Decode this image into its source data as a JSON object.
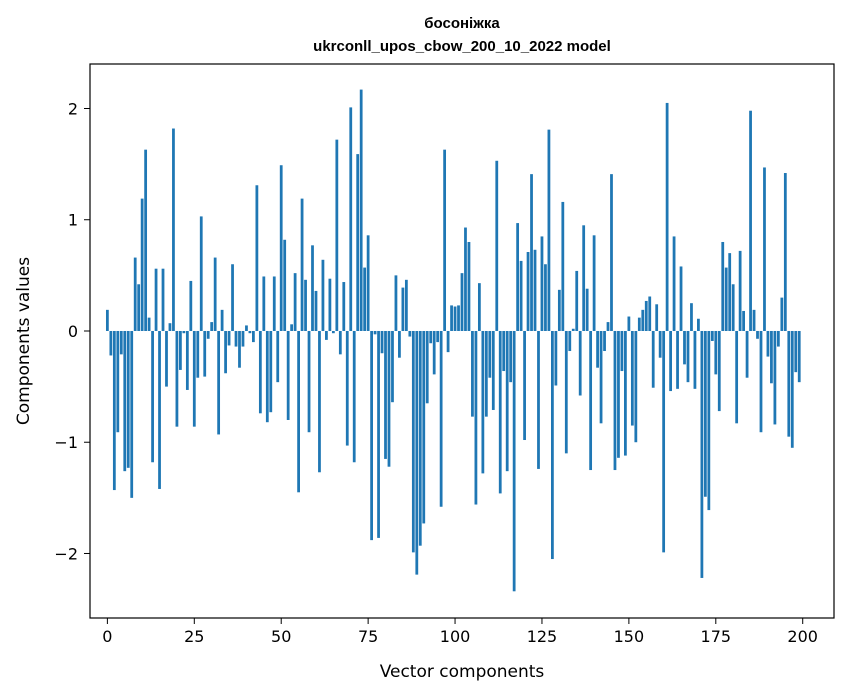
{
  "chart_data": {
    "type": "bar",
    "title": "босоніжка",
    "subtitle": "ukrconll_upos_cbow_200_10_2022 model",
    "xlabel": "Vector components",
    "ylabel": "Components values",
    "xlim": [
      -5,
      209
    ],
    "ylim": [
      -2.58,
      2.4
    ],
    "xticks": [
      0,
      25,
      50,
      75,
      100,
      125,
      150,
      175,
      200
    ],
    "yticks": [
      -2,
      -1,
      0,
      1,
      2
    ],
    "ytick_labels": [
      "−2",
      "−1",
      "0",
      "1",
      "2"
    ],
    "grid": false,
    "color": "#1f77b4",
    "x": [
      0,
      1,
      2,
      3,
      4,
      5,
      6,
      7,
      8,
      9,
      10,
      11,
      12,
      13,
      14,
      15,
      16,
      17,
      18,
      19,
      20,
      21,
      22,
      23,
      24,
      25,
      26,
      27,
      28,
      29,
      30,
      31,
      32,
      33,
      34,
      35,
      36,
      37,
      38,
      39,
      40,
      41,
      42,
      43,
      44,
      45,
      46,
      47,
      48,
      49,
      50,
      51,
      52,
      53,
      54,
      55,
      56,
      57,
      58,
      59,
      60,
      61,
      62,
      63,
      64,
      65,
      66,
      67,
      68,
      69,
      70,
      71,
      72,
      73,
      74,
      75,
      76,
      77,
      78,
      79,
      80,
      81,
      82,
      83,
      84,
      85,
      86,
      87,
      88,
      89,
      90,
      91,
      92,
      93,
      94,
      95,
      96,
      97,
      98,
      99,
      100,
      101,
      102,
      103,
      104,
      105,
      106,
      107,
      108,
      109,
      110,
      111,
      112,
      113,
      114,
      115,
      116,
      117,
      118,
      119,
      120,
      121,
      122,
      123,
      124,
      125,
      126,
      127,
      128,
      129,
      130,
      131,
      132,
      133,
      134,
      135,
      136,
      137,
      138,
      139,
      140,
      141,
      142,
      143,
      144,
      145,
      146,
      147,
      148,
      149,
      150,
      151,
      152,
      153,
      154,
      155,
      156,
      157,
      158,
      159,
      160,
      161,
      162,
      163,
      164,
      165,
      166,
      167,
      168,
      169,
      170,
      171,
      172,
      173,
      174,
      175,
      176,
      177,
      178,
      179,
      180,
      181,
      182,
      183,
      184,
      185,
      186,
      187,
      188,
      189,
      190,
      191,
      192,
      193,
      194,
      195,
      196,
      197,
      198,
      199
    ],
    "values": [
      0.19,
      -0.22,
      -1.43,
      -0.91,
      -0.21,
      -1.26,
      -1.23,
      -1.5,
      0.66,
      0.42,
      1.19,
      1.63,
      0.12,
      -1.18,
      0.56,
      -1.42,
      0.56,
      -0.5,
      0.07,
      1.82,
      -0.86,
      -0.35,
      -0.02,
      -0.53,
      0.45,
      -0.86,
      -0.42,
      1.03,
      -0.41,
      -0.07,
      0.08,
      0.66,
      -0.93,
      0.19,
      -0.38,
      -0.13,
      0.6,
      -0.14,
      -0.33,
      -0.14,
      0.05,
      -0.02,
      -0.1,
      1.31,
      -0.74,
      0.49,
      -0.82,
      -0.73,
      0.49,
      -0.46,
      1.49,
      0.82,
      -0.8,
      0.06,
      0.52,
      -1.45,
      1.19,
      0.46,
      -0.91,
      0.77,
      0.36,
      -1.27,
      0.64,
      -0.08,
      0.47,
      -0.02,
      1.72,
      -0.21,
      0.44,
      -1.03,
      2.01,
      -1.18,
      1.59,
      2.17,
      0.57,
      0.86,
      -1.88,
      -0.03,
      -1.86,
      -0.2,
      -1.15,
      -1.22,
      -0.64,
      0.5,
      -0.24,
      0.39,
      0.46,
      -0.05,
      -1.99,
      -2.19,
      -1.93,
      -1.73,
      -0.65,
      -0.11,
      -0.39,
      -0.1,
      -1.58,
      1.63,
      -0.19,
      0.23,
      0.22,
      0.23,
      0.52,
      0.93,
      0.8,
      -0.77,
      -1.56,
      0.43,
      -1.28,
      -0.77,
      -0.42,
      -0.71,
      1.53,
      -1.46,
      -0.36,
      -1.26,
      -0.46,
      -2.34,
      0.97,
      0.63,
      -0.98,
      0.71,
      1.41,
      0.73,
      -1.24,
      0.85,
      0.6,
      1.81,
      -2.05,
      -0.49,
      0.37,
      1.16,
      -1.1,
      -0.18,
      0.02,
      0.54,
      -0.58,
      0.95,
      0.38,
      -1.25,
      0.86,
      -0.33,
      -0.83,
      -0.18,
      0.08,
      1.41,
      -1.25,
      -1.14,
      -0.36,
      -1.12,
      0.13,
      -0.85,
      -1.0,
      0.12,
      0.19,
      0.27,
      0.31,
      -0.51,
      0.24,
      -0.24,
      -1.99,
      2.05,
      -0.54,
      0.85,
      -0.52,
      0.58,
      -0.3,
      -0.46,
      0.25,
      -0.52,
      0.11,
      -2.22,
      -1.49,
      -1.61,
      -0.09,
      -0.39,
      -0.72,
      0.8,
      0.57,
      0.7,
      0.42,
      -0.83,
      0.72,
      0.18,
      -0.42,
      1.98,
      0.19,
      -0.07,
      -0.91,
      1.47,
      -0.23,
      -0.47,
      -0.84,
      -0.14,
      0.3,
      1.42,
      -0.95,
      -1.05,
      -0.37,
      -0.46
    ]
  }
}
